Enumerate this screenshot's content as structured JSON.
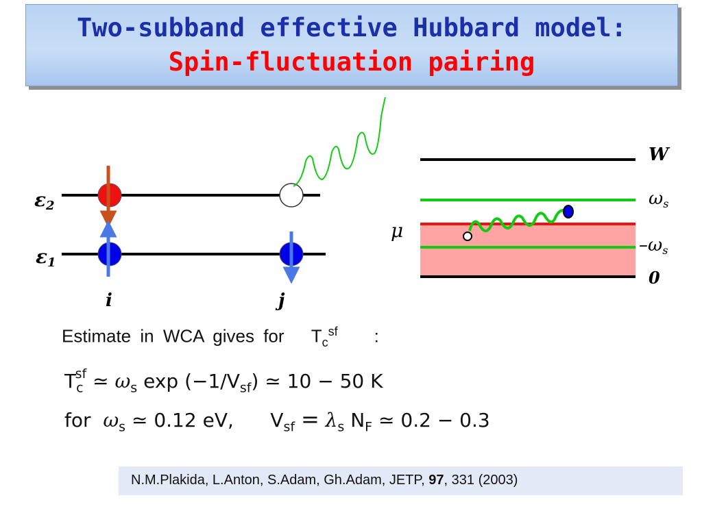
{
  "title": {
    "line1": "Two-subband effective Hubbard model:",
    "line2": "Spin-fluctuation pairing"
  },
  "diagram_left": {
    "level_upper": "ε",
    "level_upper_sub": "2",
    "level_lower": "ε",
    "level_lower_sub": "1",
    "site_i": "i",
    "site_j": "j"
  },
  "diagram_right": {
    "label_W": "W",
    "label_ws": "ω",
    "label_ws_sub": "s",
    "label_mu": "μ",
    "label_neg_ws": "–ω",
    "label_neg_ws_sub": "s",
    "label_zero": "0"
  },
  "estimate": {
    "text": "Estimate in WCA gives for",
    "T": "T",
    "T_sub": "c",
    "T_sup": "sf",
    "colon": ":"
  },
  "formula1": {
    "T": "T",
    "T_sub": "c",
    "T_sup": "sf",
    "approx1": "≃",
    "omega": "ω",
    "omega_sub": "s",
    "exp_open": "exp (−1/V",
    "V_sub": "sf",
    "exp_close": ")",
    "approx2": "≃",
    "range": "10 − 50  K"
  },
  "formula2": {
    "for": "for",
    "omega": "ω",
    "omega_sub": "s",
    "approx": "≃",
    "value": "0.12  eV,",
    "V": "V",
    "V_sub": "sf",
    "eq": "=",
    "lambda": "λ",
    "lambda_sub": "s",
    "N": "N",
    "N_sub": "F",
    "approx2": "≃",
    "range": "0.2 − 0.3"
  },
  "reference": {
    "authors": "N.M.Plakida, L.Anton, S.Adam, Gh.Adam, JETP,",
    "volume": "97",
    "rest": ", 331 (2003)"
  },
  "colors": {
    "title_blue": "#1b2fa8",
    "title_red": "#ff0000",
    "electron_blue": "#0000e6",
    "arrow_blue": "#4a78e6",
    "arrow_orange": "#c8501a",
    "electron_red": "#ee1111",
    "green_wave": "#11cc11",
    "fermi_red": "#ee1111",
    "band_pink": "#ffa3a3"
  }
}
